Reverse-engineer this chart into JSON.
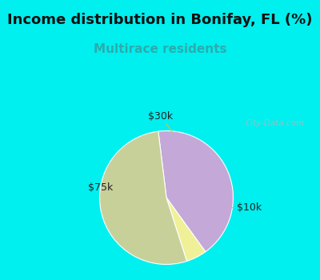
{
  "title": "Income distribution in Bonifay, FL (%)",
  "subtitle": "Multirace residents",
  "title_fontsize": 13,
  "subtitle_fontsize": 11,
  "title_color": "#111111",
  "subtitle_color": "#2aadad",
  "background_color": "#00EFEF",
  "chart_bg_color": "#eaf5ee",
  "slices": [
    {
      "label": "$10k",
      "value": 42,
      "color": "#C4A8D8"
    },
    {
      "label": "$30k",
      "value": 5,
      "color": "#F0F098"
    },
    {
      "label": "$75k",
      "value": 53,
      "color": "#C8D09A"
    }
  ],
  "startangle": 97,
  "label_fontsize": 9,
  "label_color": "#222222"
}
